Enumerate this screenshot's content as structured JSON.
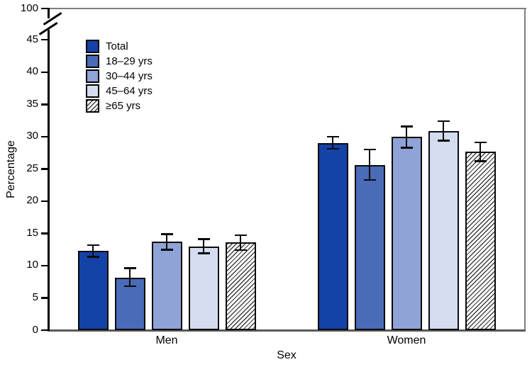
{
  "figure": {
    "background": "#ffffff",
    "frame_color": "#7f7f7f",
    "axis_color": "#000000",
    "baseline_color": "#595959"
  },
  "chart_data": {
    "type": "bar",
    "title": "",
    "xlabel": "Sex",
    "ylabel": "Percentage",
    "categories": [
      "Men",
      "Women"
    ],
    "series": [
      {
        "name": "Total",
        "color": "#1442A6",
        "hatch": false,
        "values": [
          12.3,
          29.0
        ],
        "ci_low": [
          11.4,
          28.1
        ],
        "ci_high": [
          13.2,
          30.0
        ]
      },
      {
        "name": "18–29 yrs",
        "color": "#4A6BB8",
        "hatch": false,
        "values": [
          8.1,
          25.6
        ],
        "ci_low": [
          6.8,
          23.3
        ],
        "ci_high": [
          9.6,
          28.0
        ]
      },
      {
        "name": "30–44 yrs",
        "color": "#8FA3D6",
        "hatch": false,
        "values": [
          13.7,
          30.0
        ],
        "ci_low": [
          12.5,
          28.3
        ],
        "ci_high": [
          14.9,
          31.6
        ]
      },
      {
        "name": "45–64 yrs",
        "color": "#D4DCF0",
        "hatch": false,
        "values": [
          13.0,
          30.9
        ],
        "ci_low": [
          11.9,
          29.4
        ],
        "ci_high": [
          14.1,
          32.4
        ]
      },
      {
        "name": "≥65 yrs",
        "color": "#FFFFFF",
        "hatch": true,
        "values": [
          13.6,
          27.7
        ],
        "ci_low": [
          12.4,
          26.2
        ],
        "ci_high": [
          14.7,
          29.1
        ]
      }
    ],
    "yaxis": {
      "ticks": [
        0,
        5,
        10,
        15,
        20,
        25,
        30,
        35,
        40,
        45
      ],
      "break_top_label": "100",
      "axis_break": true
    },
    "legend_position": "upper-left-inside",
    "grid": false,
    "error_bars": true
  }
}
